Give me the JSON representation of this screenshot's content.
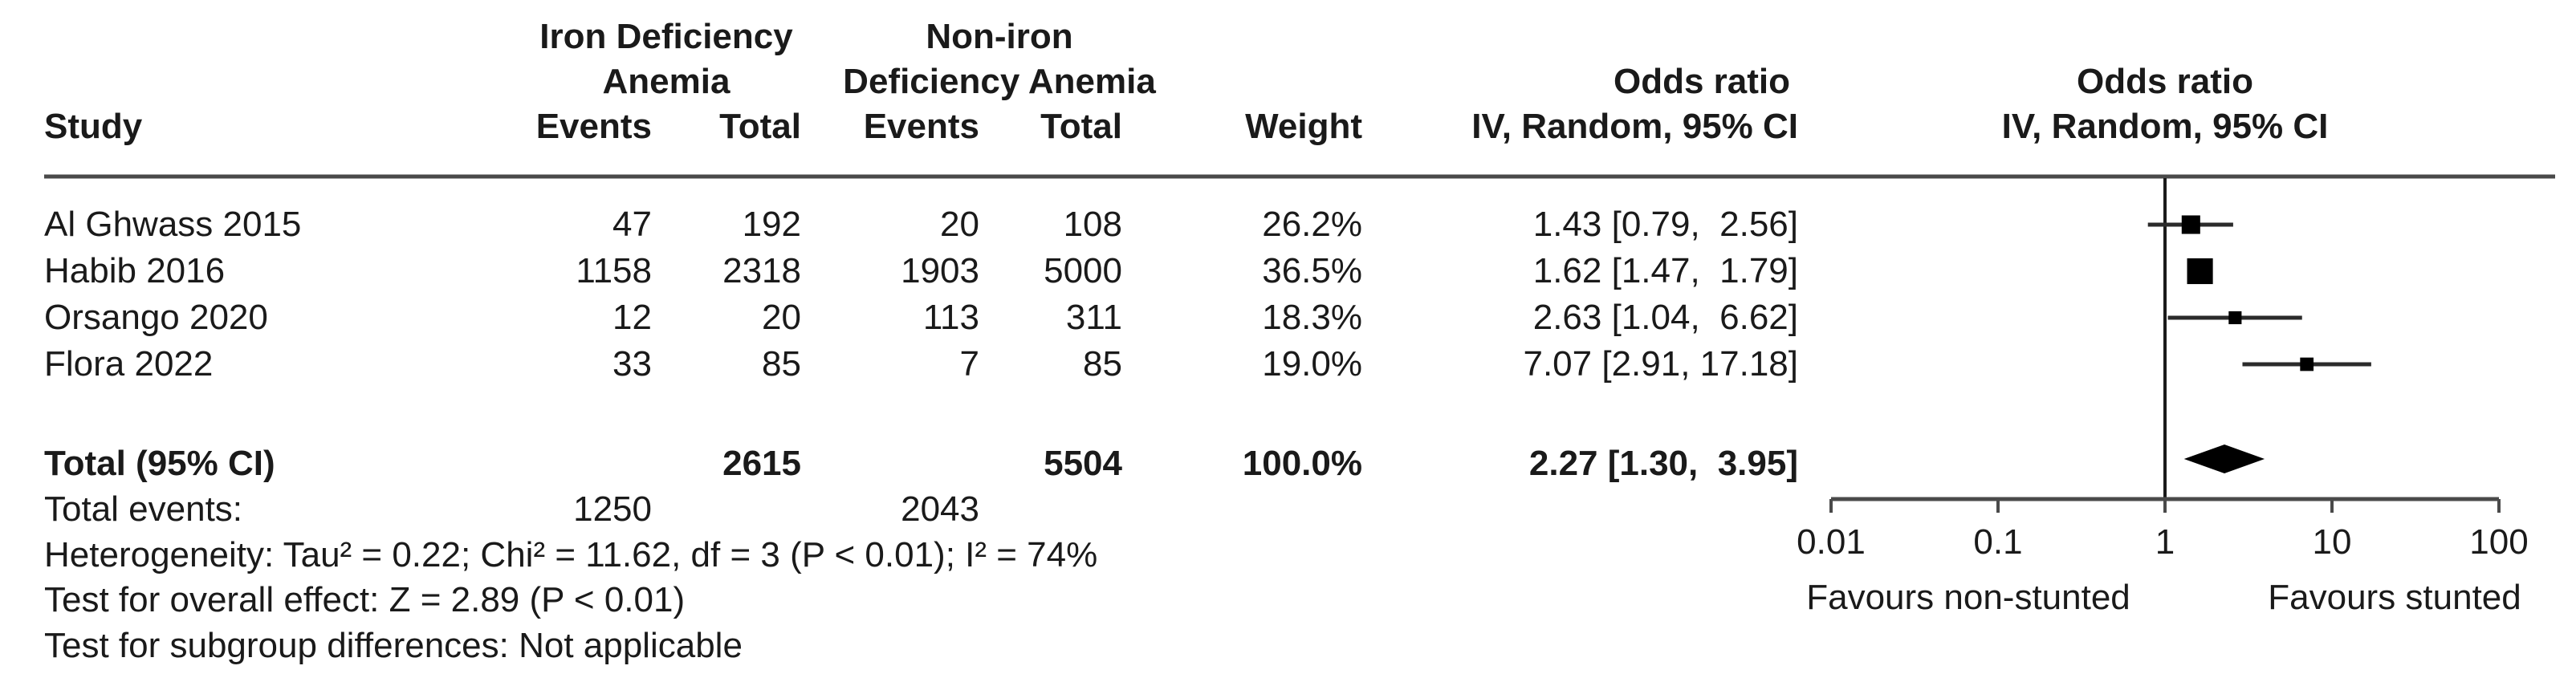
{
  "headers": {
    "study": "Study",
    "group1_line1": "Iron Deficiency",
    "group1_line2": "Anemia",
    "group2_line1": "Non-iron",
    "group2_line2": "Deficiency Anemia",
    "events1": "Events",
    "total1": "Total",
    "events2": "Events",
    "total2": "Total",
    "weight": "Weight",
    "or_col_line1": "Odds ratio",
    "or_col_line2": "IV, Random, 95% CI",
    "plot_col_line1": "Odds ratio",
    "plot_col_line2": "IV, Random, 95% CI"
  },
  "chart_data": {
    "type": "forest",
    "effect_measure": "Odds ratio",
    "model": "IV, Random, 95% CI",
    "x_axis": {
      "scale": "log10",
      "range": [
        0.01,
        100
      ],
      "ticks": [
        0.01,
        0.1,
        1,
        10,
        100
      ],
      "tick_labels": [
        "0.01",
        "0.1",
        "1",
        "10",
        "100"
      ],
      "left_label": "Favours non-stunted",
      "right_label": "Favours stunted",
      "null_line": 1
    },
    "studies": [
      {
        "name": "Al Ghwass 2015",
        "events1": "47",
        "total1": "192",
        "events2": "20",
        "total2": "108",
        "weight": "26.2%",
        "weight_pct": 26.2,
        "or": 1.43,
        "ci_low": 0.79,
        "ci_high": 2.56,
        "or_label": "1.43 [0.79,  2.56]"
      },
      {
        "name": "Habib 2016",
        "events1": "1158",
        "total1": "2318",
        "events2": "1903",
        "total2": "5000",
        "weight": "36.5%",
        "weight_pct": 36.5,
        "or": 1.62,
        "ci_low": 1.47,
        "ci_high": 1.79,
        "or_label": "1.62 [1.47,  1.79]"
      },
      {
        "name": "Orsango 2020",
        "events1": "12",
        "total1": "20",
        "events2": "113",
        "total2": "311",
        "weight": "18.3%",
        "weight_pct": 18.3,
        "or": 2.63,
        "ci_low": 1.04,
        "ci_high": 6.62,
        "or_label": "2.63 [1.04,  6.62]"
      },
      {
        "name": "Flora 2022",
        "events1": "33",
        "total1": "85",
        "events2": "7",
        "total2": "85",
        "weight": "19.0%",
        "weight_pct": 19.0,
        "or": 7.07,
        "ci_low": 2.91,
        "ci_high": 17.18,
        "or_label": "7.07 [2.91, 17.18]"
      }
    ],
    "total": {
      "label": "Total (95% CI)",
      "total1": "2615",
      "total2": "5504",
      "weight": "100.0%",
      "or": 2.27,
      "ci_low": 1.3,
      "ci_high": 3.95,
      "or_label": "2.27 [1.30,  3.95]"
    },
    "total_events": {
      "label": "Total events:",
      "events1": "1250",
      "events2": "2043"
    },
    "footer": {
      "heterogeneity": "Heterogeneity: Tau² = 0.22; Chi² = 11.62, df = 3 (P < 0.01); I² = 74%",
      "overall_effect": "Test for overall effect: Z = 2.89 (P < 0.01)",
      "subgroup": "Test for subgroup differences: Not applicable"
    },
    "colors": {
      "marker": "#000000",
      "ci_line": "#2b2b2b",
      "rule": "#4a4a4a",
      "text": "#1a1a1a"
    }
  }
}
